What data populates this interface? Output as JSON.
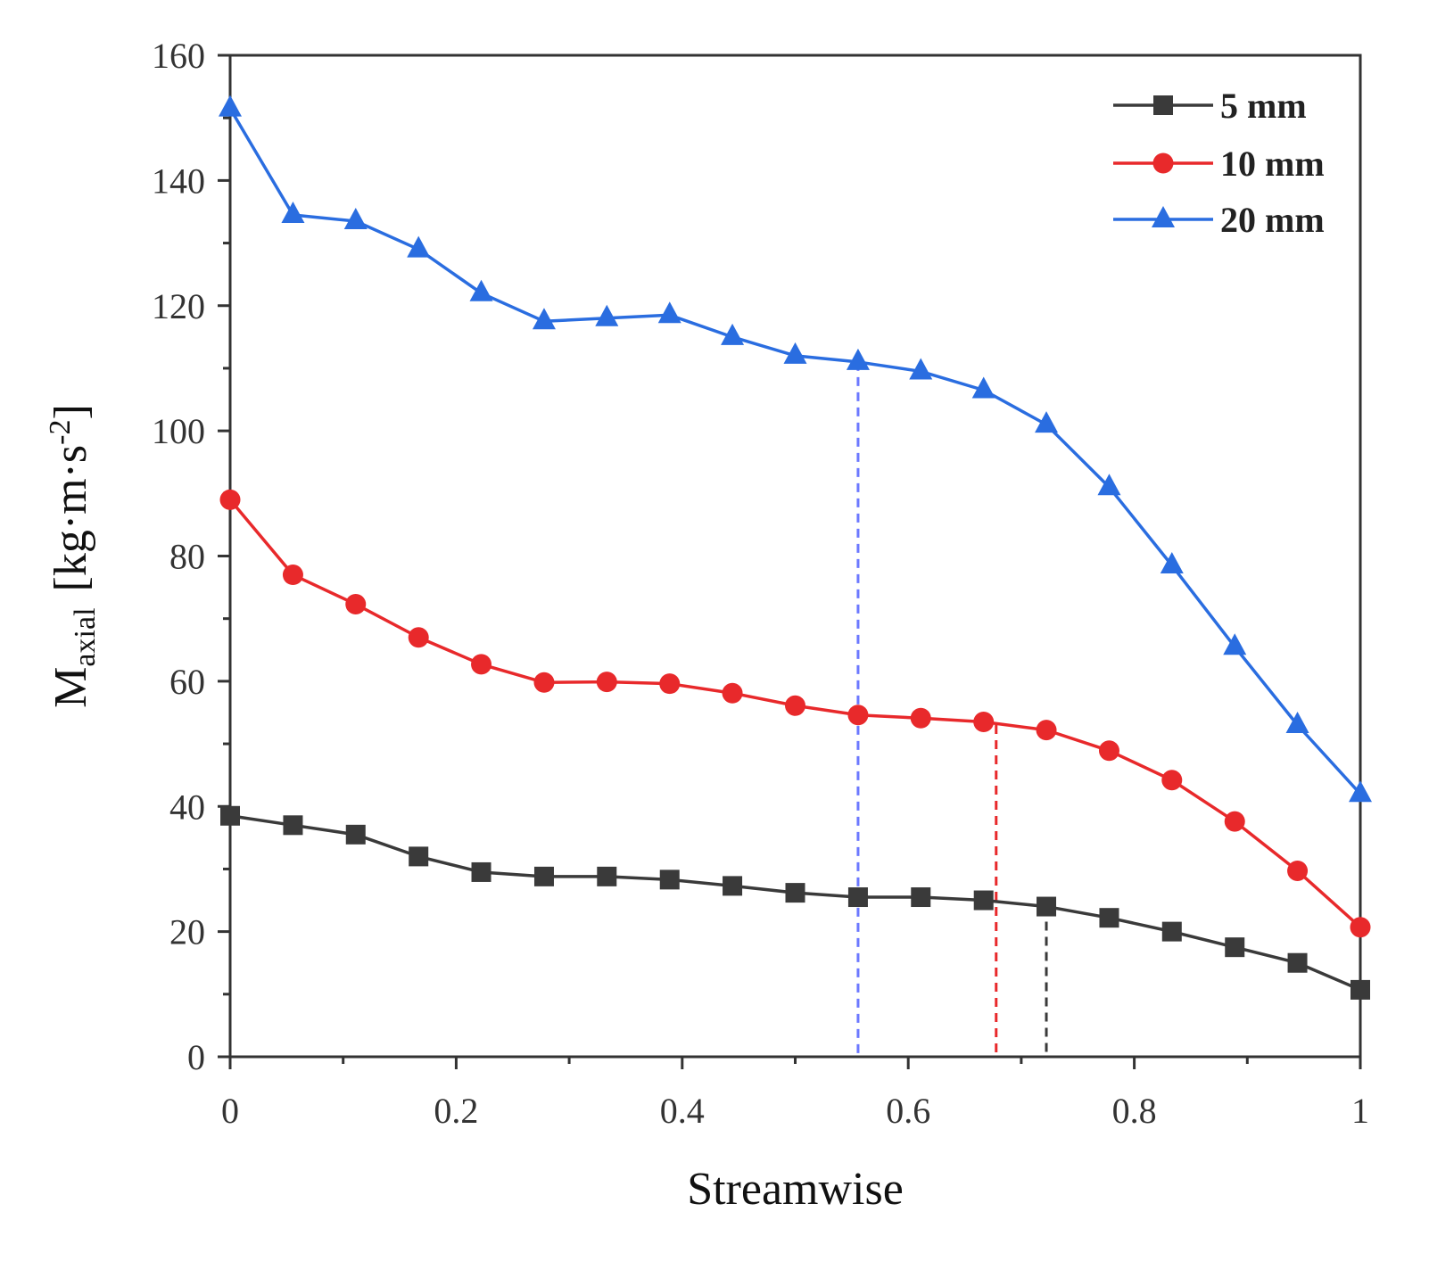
{
  "chart_data": {
    "type": "line",
    "title": "",
    "xlabel": "Streamwise",
    "ylabel": {
      "main": "M",
      "sub": "axial",
      "units_open": "[kg·m·s",
      "units_sup": "-2",
      "units_close": "]"
    },
    "xlim": [
      0,
      1
    ],
    "ylim": [
      0,
      160
    ],
    "xticks": [
      0,
      0.2,
      0.4,
      0.6,
      0.8,
      1
    ],
    "xtick_labels": [
      "0",
      "0.2",
      "0.4",
      "0.6",
      "0.8",
      "1"
    ],
    "yticks": [
      0,
      20,
      40,
      60,
      80,
      100,
      120,
      140,
      160
    ],
    "ytick_labels": [
      "0",
      "20",
      "40",
      "60",
      "80",
      "100",
      "120",
      "140",
      "160"
    ],
    "grid": false,
    "legend_position": "top-right",
    "x": [
      0,
      0.0556,
      0.1111,
      0.1667,
      0.2222,
      0.2778,
      0.3333,
      0.3889,
      0.4444,
      0.5,
      0.5556,
      0.6111,
      0.6667,
      0.7222,
      0.7778,
      0.8333,
      0.8889,
      0.9444,
      1.0
    ],
    "series": [
      {
        "name": "5 mm",
        "color": "#3a3a3a",
        "marker": "square",
        "values": [
          38.5,
          37.0,
          35.5,
          32.0,
          29.5,
          28.8,
          28.8,
          28.3,
          27.3,
          26.2,
          25.5,
          25.5,
          25.0,
          24.0,
          22.2,
          20.0,
          17.5,
          15.0,
          10.7
        ]
      },
      {
        "name": "10 mm",
        "color": "#e8292b",
        "marker": "circle",
        "values": [
          89.0,
          77.0,
          72.3,
          67.0,
          62.7,
          59.8,
          59.9,
          59.6,
          58.1,
          56.1,
          54.6,
          54.1,
          53.5,
          52.2,
          48.9,
          44.2,
          37.6,
          29.7,
          20.7
        ]
      },
      {
        "name": "20 mm",
        "color": "#2a6de0",
        "marker": "triangle",
        "values": [
          151.5,
          134.5,
          133.5,
          129.0,
          122.0,
          117.5,
          118.0,
          118.5,
          115.0,
          112.0,
          111.0,
          109.5,
          106.5,
          101.0,
          91.0,
          78.5,
          65.5,
          53.0,
          42.0
        ]
      }
    ],
    "reference_lines": [
      {
        "series": "20 mm",
        "x": 0.5556,
        "y": 111.0,
        "color": "#6b78ff"
      },
      {
        "series": "10 mm",
        "x": 0.6778,
        "y": 53.0,
        "color": "#e8292b"
      },
      {
        "series": "5 mm",
        "x": 0.7222,
        "y": 24.0,
        "color": "#3a3a3a"
      }
    ]
  }
}
